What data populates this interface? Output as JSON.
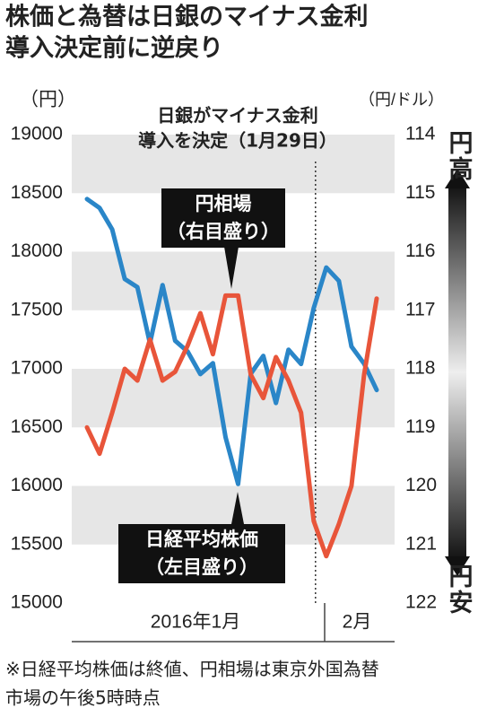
{
  "chart_data": {
    "type": "line",
    "title_lines": [
      "株価と為替は日銀のマイナス金利",
      "導入決定前に逆戻り"
    ],
    "y_label": "（円）",
    "y2_label": "（円/ドル）",
    "x_group_labels": [
      "2016年1月",
      "2月"
    ],
    "event_annotation_lines": [
      "日銀がマイナス金利",
      "導入を決定（1月29日）"
    ],
    "y2_direction_labels": [
      "円高",
      "円安"
    ],
    "footnote_lines": [
      "※日経平均株価は終値、円相場は東京外国為替",
      "市場の午後5時時点"
    ],
    "categories": [
      null,
      null,
      null,
      null,
      null,
      null,
      null,
      null,
      null,
      null,
      null,
      null,
      null,
      null,
      null,
      null,
      null,
      null,
      null,
      null,
      null,
      null,
      null,
      null
    ],
    "series": [
      {
        "name": "日経平均株価",
        "name_note": "（左目盛り）",
        "color": "#2a86c8",
        "axis": "y",
        "values": [
          18450,
          18374,
          18191,
          17767,
          17697,
          17218,
          17715,
          17240,
          17147,
          16955,
          17048,
          16416,
          16017,
          16958,
          17110,
          16708,
          17163,
          17041,
          17518,
          17865,
          17750,
          17191,
          17044,
          16819
        ]
      },
      {
        "name": "円相場",
        "name_note": "（右目盛り）",
        "color": "#e8553a",
        "axis": "y2",
        "values": [
          119.0,
          119.45,
          118.75,
          118.0,
          118.2,
          117.5,
          118.2,
          118.05,
          117.6,
          117.05,
          117.75,
          116.75,
          116.75,
          118.1,
          118.5,
          117.8,
          118.2,
          118.75,
          120.6,
          121.2,
          120.65,
          120.0,
          118.1,
          116.8
        ]
      }
    ],
    "ylim": [
      15000,
      19000
    ],
    "yticks": [
      15000,
      15500,
      16000,
      16500,
      17000,
      17500,
      18000,
      18500,
      19000
    ],
    "y2lim": [
      122,
      114
    ],
    "y2ticks": [
      114,
      115,
      116,
      117,
      118,
      119,
      120,
      121,
      122
    ],
    "grid": true
  }
}
